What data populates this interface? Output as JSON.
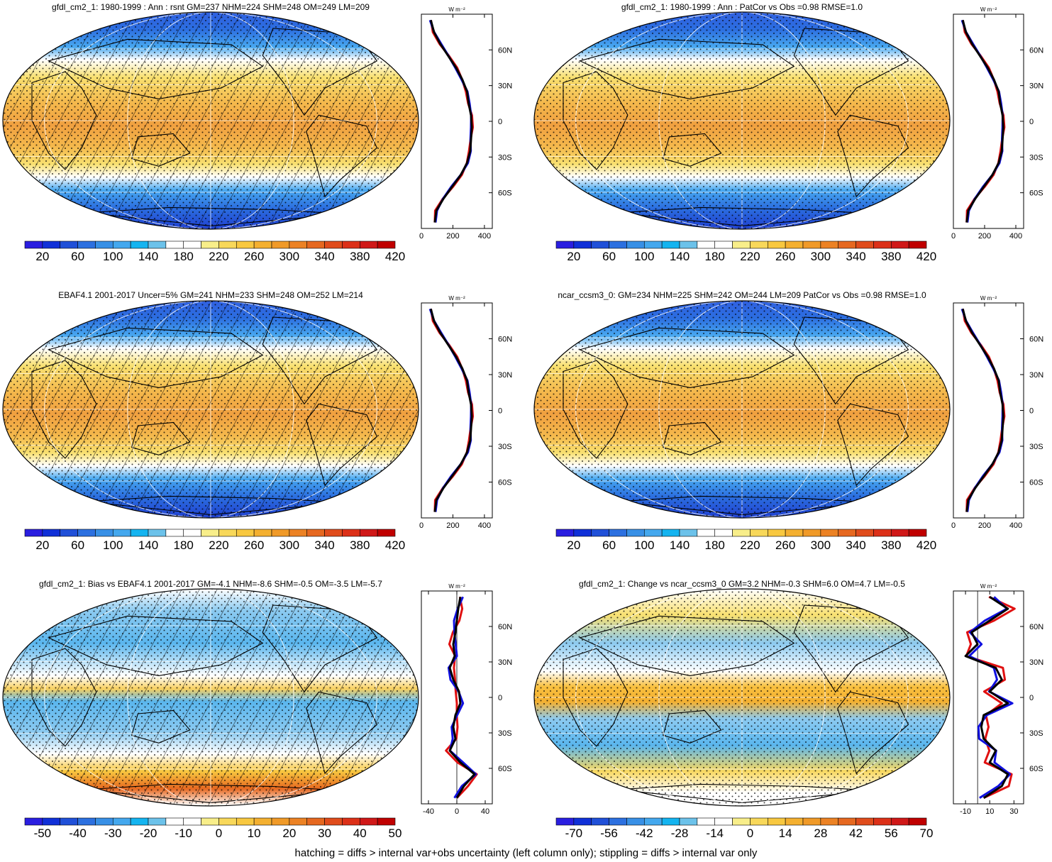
{
  "footer": "hatching = diffs > internal var+obs uncertainty (left column only); stippling = diffs > internal var only",
  "profile_unit": "W m⁻²",
  "lat_labels": [
    "60N",
    "30N",
    "0",
    "30S",
    "60S"
  ],
  "colors": {
    "abs_scale": [
      "#2a1ee0",
      "#1030d8",
      "#2050d8",
      "#2c70e0",
      "#3890e6",
      "#44a8ee",
      "#14b4f0",
      "#6cc2ea",
      "#ffffff",
      "#ffffff",
      "#f8ee8a",
      "#f8d85a",
      "#f8c840",
      "#f4b030",
      "#f09a28",
      "#ec8224",
      "#e66820",
      "#e04c1c",
      "#dc3018",
      "#d01818",
      "#c00000"
    ],
    "diff_scale": [
      "#2a1ee0",
      "#1030d8",
      "#2050d8",
      "#2c70e0",
      "#3890e6",
      "#44a8ee",
      "#14b4f0",
      "#6cc2ea",
      "#ffffff",
      "#ffffff",
      "#f8ee8a",
      "#f8d85a",
      "#f8c840",
      "#f4b030",
      "#f09a28",
      "#ec8224",
      "#e66820",
      "#e04c1c",
      "#dc3018",
      "#d01818",
      "#c00000"
    ],
    "line_model": "#e01010",
    "line_obs": "#1010e0",
    "line_mean": "#000000"
  },
  "panels": [
    {
      "id": "model-clim",
      "title": "gfdl_cm2_1: 1980-1999 : Ann : rsnt GM=237 NHM=224 SHM=248 OM=249 LM=209",
      "colorbar_labels": [
        "20",
        "60",
        "100",
        "140",
        "180",
        "220",
        "260",
        "300",
        "340",
        "380",
        "420"
      ],
      "profile_ticks": [
        "0",
        "200",
        "400"
      ],
      "profile_range": [
        0,
        450
      ],
      "field": "abs",
      "hatched": true
    },
    {
      "id": "model-patcor",
      "title": "gfdl_cm2_1: 1980-1999 : Ann : PatCor vs Obs =0.98 RMSE=1.0",
      "colorbar_labels": [
        "20",
        "60",
        "100",
        "140",
        "180",
        "220",
        "260",
        "300",
        "340",
        "380",
        "420"
      ],
      "profile_ticks": [
        "0",
        "200",
        "400"
      ],
      "profile_range": [
        0,
        450
      ],
      "field": "abs",
      "hatched": false
    },
    {
      "id": "obs-clim",
      "title": "EBAF4.1 2001-2017 Uncer=5% GM=241 NHM=233 SHM=248 OM=252 LM=214",
      "colorbar_labels": [
        "20",
        "60",
        "100",
        "140",
        "180",
        "220",
        "260",
        "300",
        "340",
        "380",
        "420"
      ],
      "profile_ticks": [
        "0",
        "200",
        "400"
      ],
      "profile_range": [
        0,
        450
      ],
      "field": "abs",
      "hatched": true
    },
    {
      "id": "ref-model-clim",
      "title": "ncar_ccsm3_0: GM=234 NHM=225 SHM=242 OM=244 LM=209 PatCor vs Obs =0.98 RMSE=1.0",
      "colorbar_labels": [
        "20",
        "60",
        "100",
        "140",
        "180",
        "220",
        "260",
        "300",
        "340",
        "380",
        "420"
      ],
      "profile_ticks": [
        "0",
        "200",
        "400"
      ],
      "profile_range": [
        0,
        450
      ],
      "field": "abs",
      "hatched": false
    },
    {
      "id": "bias",
      "title": "gfdl_cm2_1: Bias vs EBAF4.1 2001-2017 GM=-4.1 NHM=-8.6 SHM=-0.5 OM=-3.5 LM=-5.7",
      "colorbar_labels": [
        "-50",
        "-40",
        "-30",
        "-20",
        "-10",
        "0",
        "10",
        "20",
        "30",
        "40",
        "50"
      ],
      "profile_ticks": [
        "-40",
        "0",
        "40"
      ],
      "profile_range": [
        -50,
        50
      ],
      "field": "bias",
      "hatched": true
    },
    {
      "id": "change",
      "title": "gfdl_cm2_1: Change vs ncar_ccsm3_0 GM=3.2 NHM=-0.3 SHM=6.0 OM=4.7 LM=-0.5",
      "colorbar_labels": [
        "-70",
        "-56",
        "-42",
        "-28",
        "-14",
        "0",
        "14",
        "28",
        "42",
        "56",
        "70"
      ],
      "profile_ticks": [
        "-10",
        "10",
        "30"
      ],
      "profile_range": [
        -20,
        38
      ],
      "field": "change",
      "hatched": false
    }
  ],
  "chart_data": [
    {
      "type": "line",
      "name_key": "zonal-mean-profiles",
      "y_axis": "latitude",
      "lat": [
        -85,
        -75,
        -65,
        -55,
        -45,
        -35,
        -25,
        -15,
        -5,
        5,
        15,
        25,
        35,
        45,
        55,
        65,
        75,
        85
      ],
      "abs_profile": [
        85,
        95,
        140,
        195,
        250,
        290,
        310,
        315,
        320,
        315,
        300,
        290,
        260,
        220,
        170,
        120,
        80,
        60
      ],
      "bias_profile": [
        0,
        10,
        25,
        5,
        -10,
        -2,
        -5,
        -2,
        5,
        3,
        -5,
        -10,
        -3,
        -5,
        -2,
        0,
        2,
        5
      ],
      "change_profile": [
        5,
        20,
        25,
        10,
        15,
        5,
        3,
        5,
        25,
        10,
        20,
        15,
        -10,
        0,
        -5,
        10,
        25,
        10
      ]
    }
  ]
}
